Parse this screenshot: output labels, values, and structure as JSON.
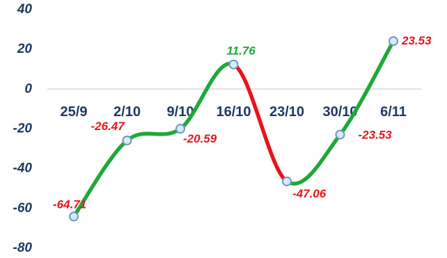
{
  "chart_data": {
    "type": "line",
    "categories": [
      "25/9",
      "2/10",
      "9/10",
      "16/10",
      "23/10",
      "30/10",
      "6/11"
    ],
    "values": [
      -64.71,
      -26.47,
      -20.59,
      11.76,
      -47.06,
      -23.53,
      23.53
    ],
    "data_labels": [
      "-64.71",
      "-26.47",
      "-20.59",
      "11.76",
      "-47.06",
      "-23.53",
      "23.53"
    ],
    "yticks": [
      "40",
      "20",
      "0",
      "-20",
      "-40",
      "-60",
      "-80"
    ],
    "ytick_values": [
      40,
      20,
      0,
      -20,
      -40,
      -60,
      -80
    ],
    "ylim": [
      -80,
      40
    ],
    "title": "",
    "xlabel": "",
    "ylabel": "",
    "grid": false,
    "smooth": true,
    "colors": {
      "rising_segment": "#1fa83a",
      "falling_segment": "#e8141c",
      "marker_fill": "#dbe9f6",
      "marker_stroke": "#6b96c3",
      "axis_text": "#1f3864",
      "positive_label_default": "#1fa83a",
      "negative_label": "#e8141c",
      "zero_line": "#d9d9d9"
    },
    "label_colors": [
      "#e8141c",
      "#e8141c",
      "#e8141c",
      "#1fa83a",
      "#e8141c",
      "#e8141c",
      "#e8141c"
    ]
  }
}
